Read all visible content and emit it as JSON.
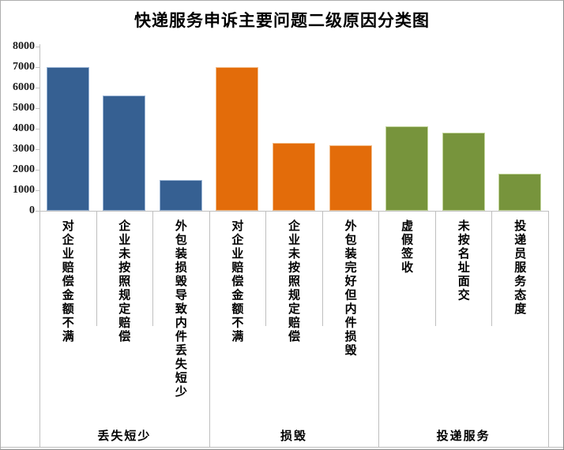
{
  "title": "快递服务申诉主要问题二级原因分类图",
  "chart_data": {
    "type": "bar",
    "title": "快递服务申诉主要问题二级原因分类图",
    "xlabel": "",
    "ylabel": "",
    "ylim": [
      0,
      8000
    ],
    "ytick_step": 1000,
    "grid": false,
    "legend": false,
    "axis_color": "#bfbfbf",
    "text_color": "#000000",
    "categories": [
      "对企业赔偿金额不满",
      "企业未按照规定赔偿",
      "外包装损毁导致内件丢失短少",
      "对企业赔偿金额不满",
      "企业未按照规定赔偿",
      "外包装完好但内件损毁",
      "虚假签收",
      "未按名址面交",
      "投递员服务态度"
    ],
    "values": [
      7000,
      5600,
      1500,
      7000,
      3300,
      3200,
      4100,
      3800,
      1800
    ],
    "groups": [
      {
        "label": "丢失短少",
        "color": "#366092",
        "border_color": "#9ab4d4",
        "items": [
          {
            "label": "对企业赔偿金额不满",
            "value": 7000
          },
          {
            "label": "企业未按照规定赔偿",
            "value": 5600
          },
          {
            "label": "外包装损毁导致内件丢失短少",
            "value": 1500
          }
        ]
      },
      {
        "label": "损毁",
        "color": "#E36C0A",
        "border_color": "#f2bd8a",
        "items": [
          {
            "label": "对企业赔偿金额不满",
            "value": 7000
          },
          {
            "label": "企业未按照规定赔偿",
            "value": 3300
          },
          {
            "label": "外包装完好但内件损毁",
            "value": 3200
          }
        ]
      },
      {
        "label": "投递服务",
        "color": "#77943C",
        "border_color": "#c2d59b",
        "items": [
          {
            "label": "虚假签收",
            "value": 4100
          },
          {
            "label": "未按名址面交",
            "value": 3800
          },
          {
            "label": "投递员服务态度",
            "value": 1800
          }
        ]
      }
    ]
  }
}
